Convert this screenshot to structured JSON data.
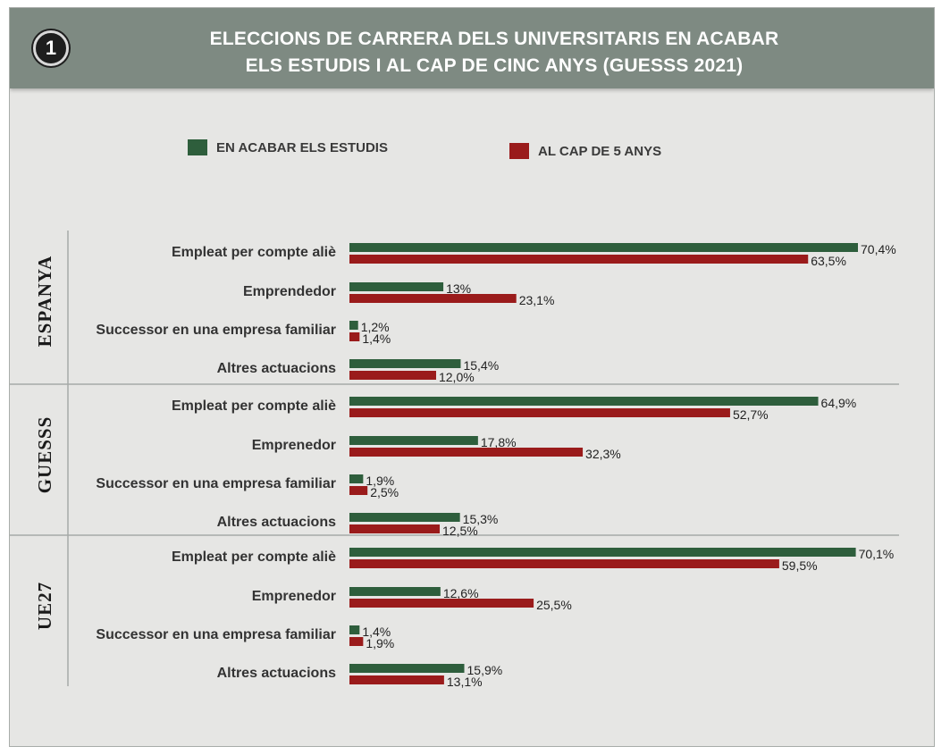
{
  "header": {
    "badge": "1",
    "title_line1": "ELECCIONS DE CARRERA DELS UNIVERSITARIS EN ACABAR",
    "title_line2": "ELS ESTUDIS I AL CAP DE CINC ANYS (GUESSS 2021)"
  },
  "colors": {
    "series_1": "#2e5e3c",
    "series_2": "#9a1b1b"
  },
  "chart_data": {
    "type": "bar",
    "orientation": "horizontal",
    "title": "ELECCIONS DE CARRERA DELS UNIVERSITARIS EN ACABAR ELS ESTUDIS I AL CAP DE CINC ANYS (GUESSS 2021)",
    "xlim": [
      0,
      70.4
    ],
    "value_suffix": "%",
    "legend": {
      "position": "top",
      "items": [
        "EN ACABAR ELS ESTUDIS",
        "AL CAP DE 5 ANYS"
      ]
    },
    "groups": [
      {
        "name": "ESPANYA",
        "categories": [
          "Empleat per compte aliè",
          "Emprendedor",
          "Successor en una empresa familiar",
          "Altres actuacions"
        ],
        "series": [
          {
            "name": "EN ACABAR ELS ESTUDIS",
            "values": [
              70.4,
              13,
              1.2,
              15.4
            ],
            "labels": [
              "70,4%",
              "13%",
              "1,2%",
              "15,4%"
            ]
          },
          {
            "name": "AL CAP DE 5 ANYS",
            "values": [
              63.5,
              23.1,
              1.4,
              12.0
            ],
            "labels": [
              "63,5%",
              "23,1%",
              "1,4%",
              "12,0%"
            ]
          }
        ]
      },
      {
        "name": "GUESSS",
        "categories": [
          "Empleat per compte aliè",
          "Emprenedor",
          "Successor en una empresa familiar",
          "Altres actuacions"
        ],
        "series": [
          {
            "name": "EN ACABAR ELS ESTUDIS",
            "values": [
              64.9,
              17.8,
              1.9,
              15.3
            ],
            "labels": [
              "64,9%",
              "17,8%",
              "1,9%",
              "15,3%"
            ]
          },
          {
            "name": "AL CAP DE 5 ANYS",
            "values": [
              52.7,
              32.3,
              2.5,
              12.5
            ],
            "labels": [
              "52,7%",
              "32,3%",
              "2,5%",
              "12,5%"
            ]
          }
        ]
      },
      {
        "name": "UE27",
        "categories": [
          "Empleat per compte aliè",
          "Emprenedor",
          "Successor en una empresa familiar",
          "Altres actuacions"
        ],
        "series": [
          {
            "name": "EN ACABAR ELS ESTUDIS",
            "values": [
              70.1,
              12.6,
              1.4,
              15.9
            ],
            "labels": [
              "70,1%",
              "12,6%",
              "1,4%",
              "15,9%"
            ]
          },
          {
            "name": "AL CAP DE 5 ANYS",
            "values": [
              59.5,
              25.5,
              1.9,
              13.1
            ],
            "labels": [
              "59,5%",
              "25,5%",
              "1,9%",
              "13,1%"
            ]
          }
        ]
      }
    ]
  }
}
